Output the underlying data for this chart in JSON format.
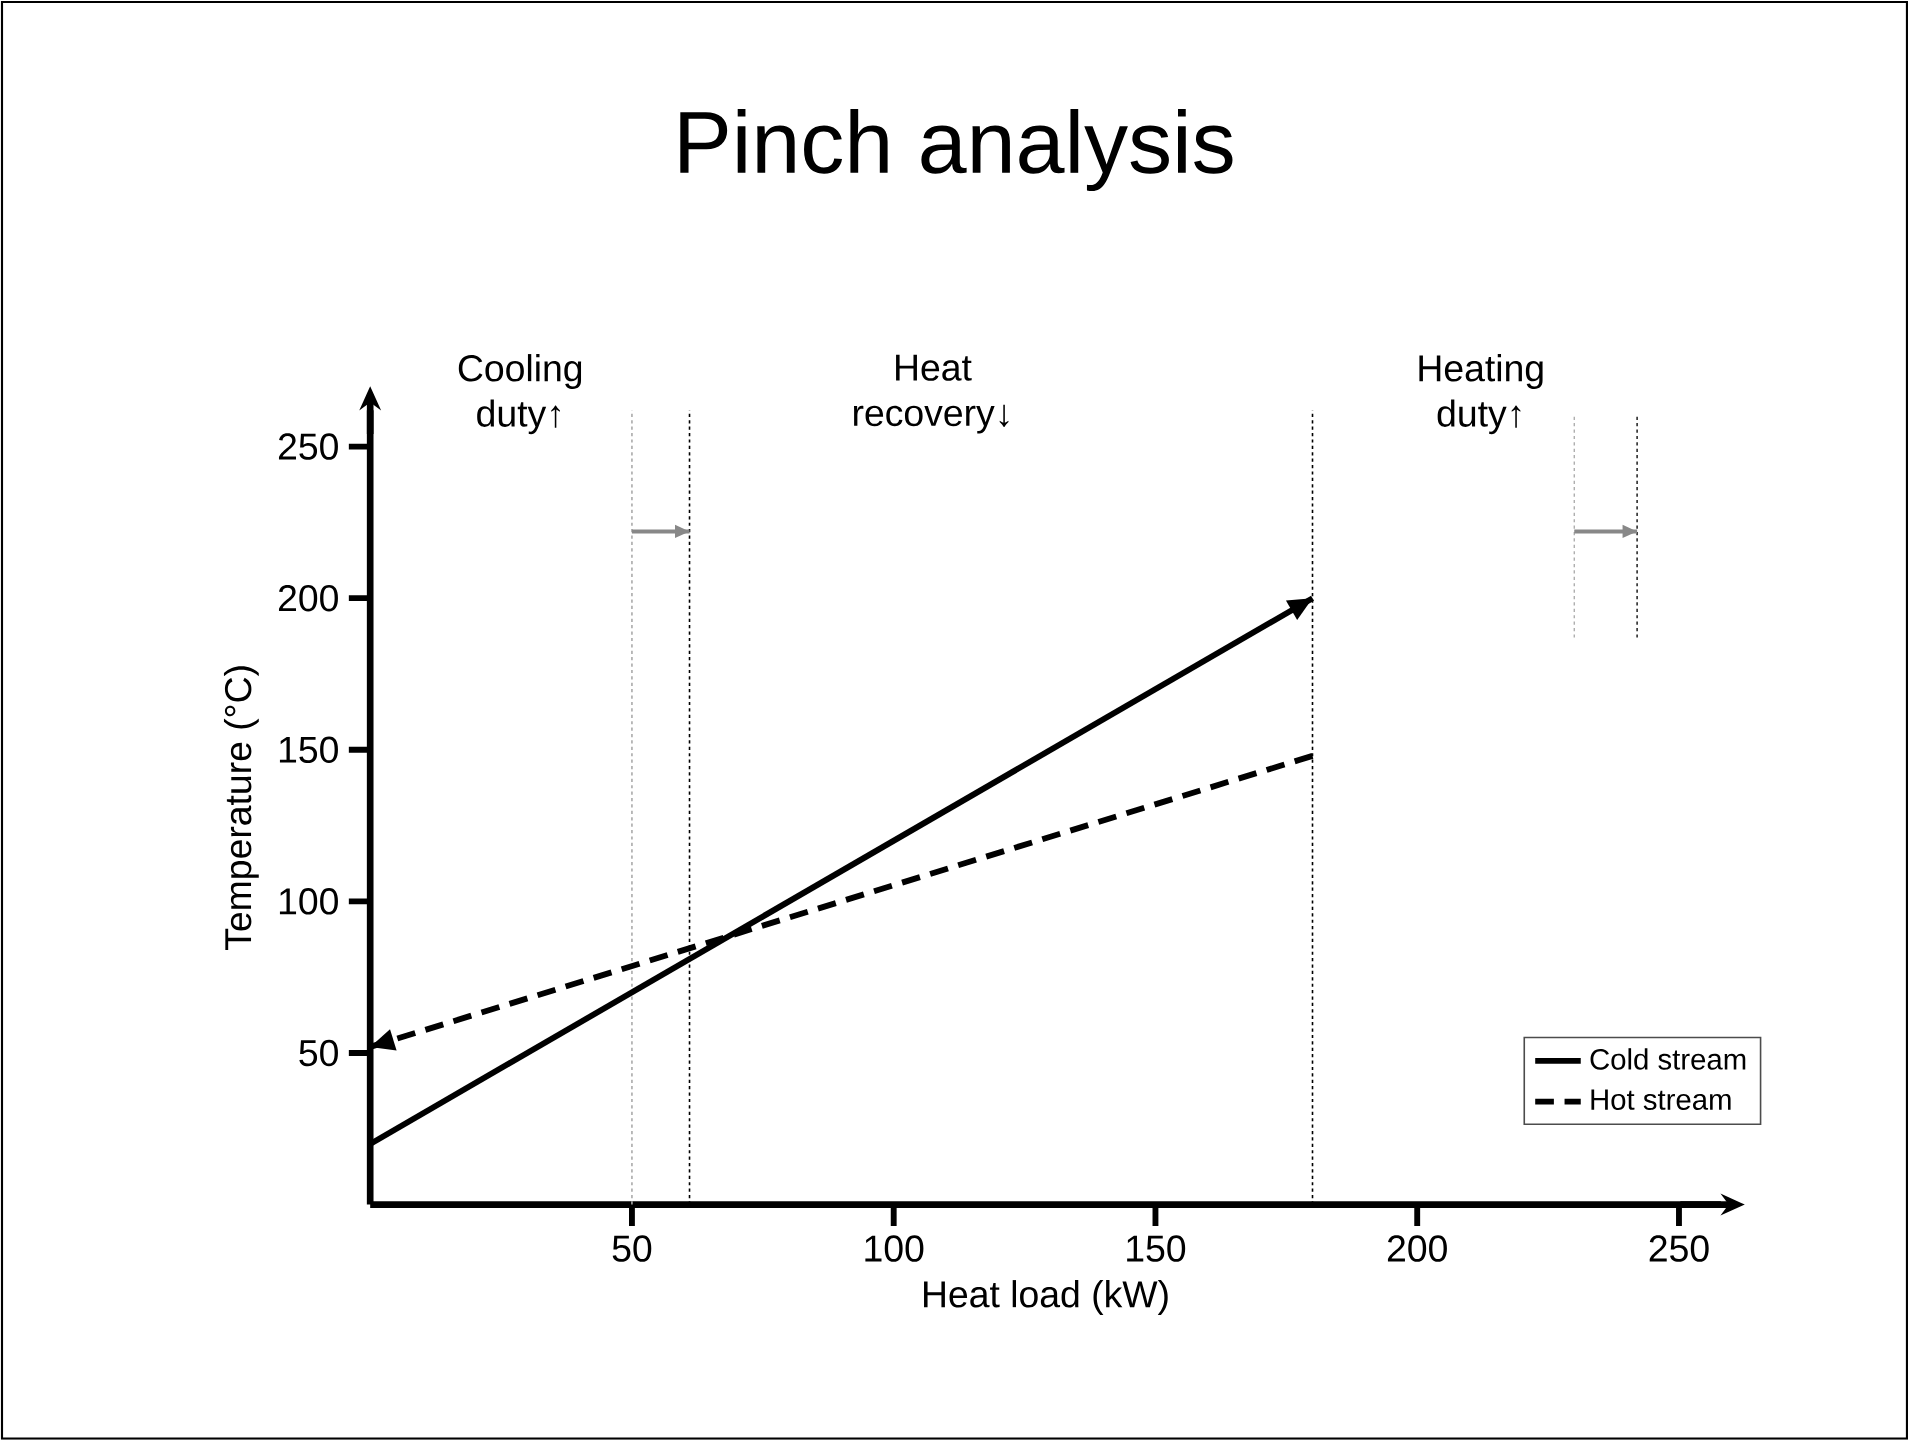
{
  "chart_data": {
    "type": "line",
    "title": "Pinch analysis",
    "xlabel": "Heat load (kW)",
    "ylabel": "Temperature (°C)",
    "xlim": [
      0,
      258
    ],
    "ylim": [
      0,
      262
    ],
    "xticks": [
      50,
      100,
      150,
      200,
      250
    ],
    "yticks": [
      50,
      100,
      150,
      200,
      250
    ],
    "legend": "bottom right",
    "series": [
      {
        "name": "Cold stream",
        "color": "#000000",
        "line_style": "solid",
        "x": [
          0,
          180
        ],
        "values": [
          20,
          200
        ]
      },
      {
        "name": "Hot stream",
        "color": "#000000",
        "line_style": "dashed",
        "x": [
          180,
          0
        ],
        "values": [
          148,
          52
        ]
      },
      {
        "color": "#aaaaaa",
        "line_style": "dotted",
        "x": [
          230,
          230
        ],
        "values": [
          187,
          260
        ]
      },
      {
        "color": "#000000",
        "line_style": "dotted",
        "x": [
          242,
          242
        ],
        "values": [
          187,
          260
        ]
      },
      {
        "color": "#888888",
        "line_style": "solid",
        "x": [
          50,
          61
        ],
        "values": [
          222,
          222
        ]
      },
      {
        "color": "#888888",
        "line_style": "solid",
        "x": [
          230,
          242
        ],
        "values": [
          222,
          222
        ]
      }
    ],
    "ref_lines": [
      {
        "axis": "x",
        "value": 50,
        "color": "#aaaaaa",
        "line_style": "dotted"
      },
      {
        "axis": "x",
        "value": 61,
        "color": "#000000",
        "line_style": "dotted"
      },
      {
        "axis": "x",
        "value": 180,
        "color": "#000000",
        "line_style": "dotted"
      }
    ],
    "annotations": [
      "Cooling duty↑",
      "Heat recovery↓",
      "Heating duty↑"
    ]
  }
}
